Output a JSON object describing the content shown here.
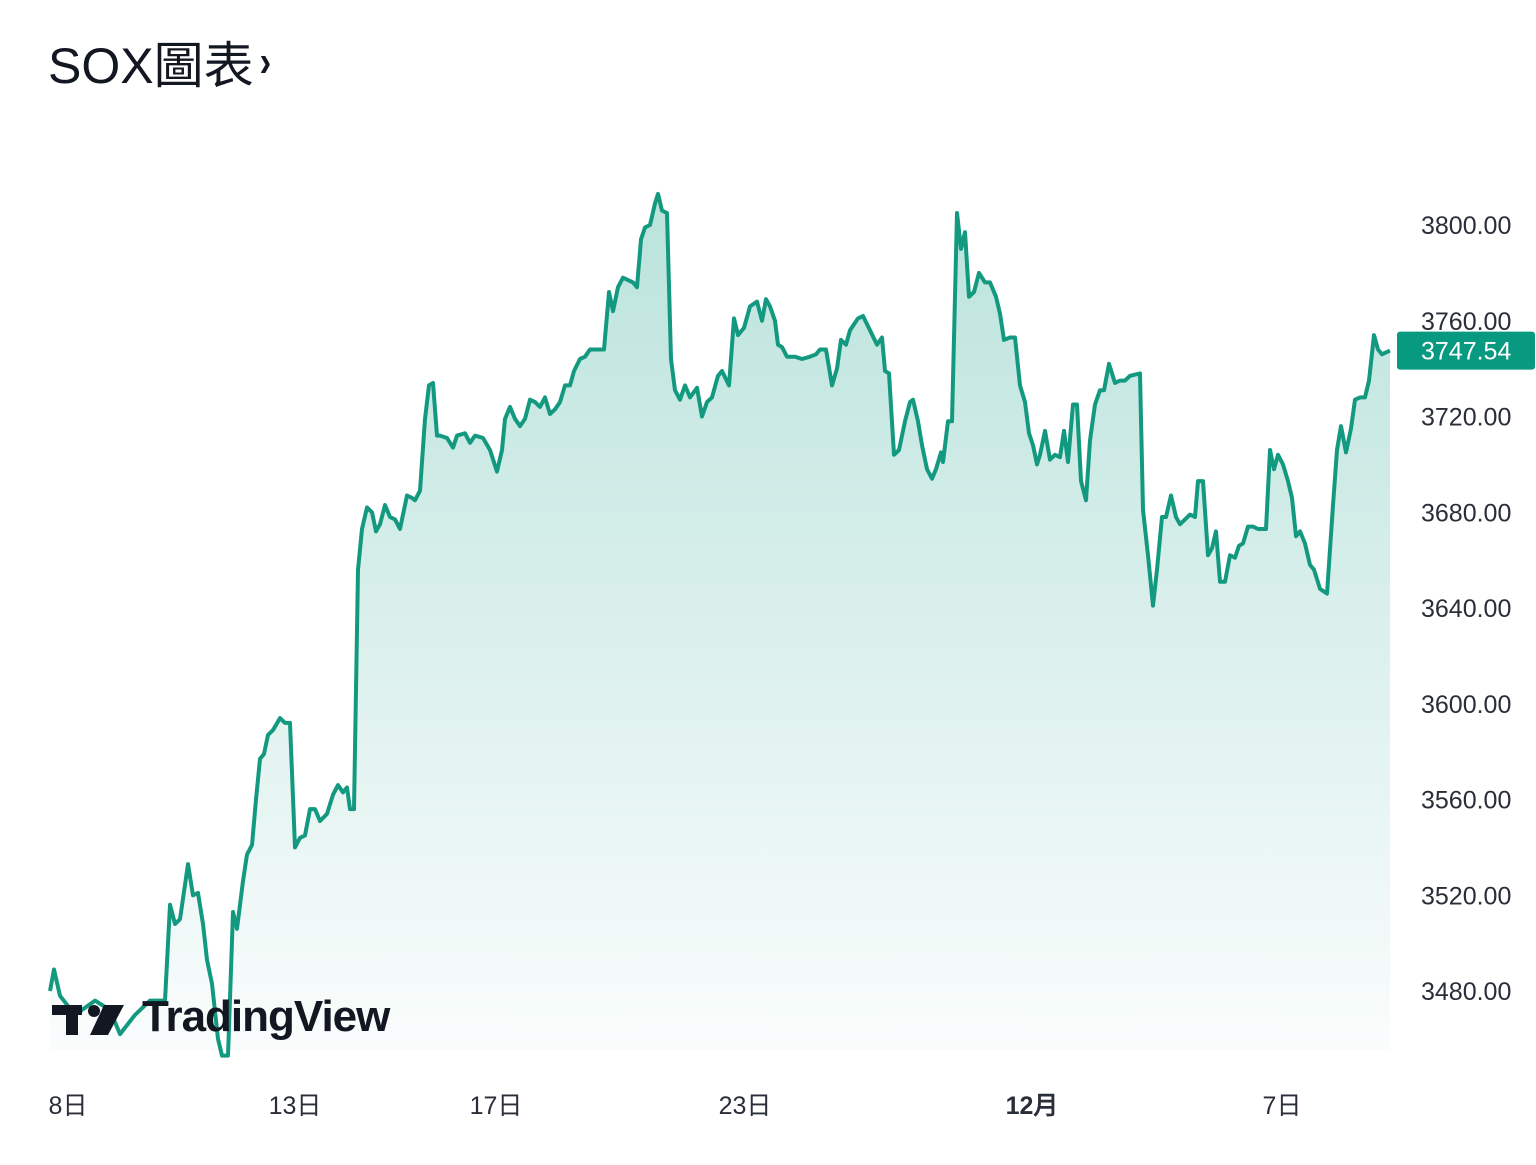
{
  "header": {
    "title": "SOX圖表",
    "chevron": "›"
  },
  "logo": {
    "text": "TradingView"
  },
  "colors": {
    "line": "#13997f",
    "label_bg": "#089981",
    "text": "#2a2e39"
  },
  "chart_data": {
    "type": "area",
    "title": "SOX圖表",
    "xlabel": "",
    "ylabel": "",
    "ylim": [
      3450,
      3830
    ],
    "xlim": [
      0,
      1340
    ],
    "grid": false,
    "yticks": [
      "3480.00",
      "3520.00",
      "3560.00",
      "3600.00",
      "3640.00",
      "3680.00",
      "3720.00",
      "3760.00",
      "3800.00"
    ],
    "xticks": [
      {
        "t": 18,
        "label": "8日",
        "bold": false
      },
      {
        "t": 245,
        "label": "13日",
        "bold": false
      },
      {
        "t": 446,
        "label": "17日",
        "bold": false
      },
      {
        "t": 695,
        "label": "23日",
        "bold": false
      },
      {
        "t": 982,
        "label": "12月",
        "bold": true
      },
      {
        "t": 1232,
        "label": "7日",
        "bold": false
      }
    ],
    "last_price": 3747.54,
    "last_price_label": "3747.54",
    "points": [
      [
        0,
        3480
      ],
      [
        4,
        3489
      ],
      [
        10,
        3478
      ],
      [
        25,
        3470
      ],
      [
        45,
        3476
      ],
      [
        60,
        3472
      ],
      [
        70,
        3462
      ],
      [
        85,
        3470
      ],
      [
        100,
        3476
      ],
      [
        115,
        3476
      ],
      [
        120,
        3516
      ],
      [
        125,
        3508
      ],
      [
        130,
        3510
      ],
      [
        138,
        3533
      ],
      [
        143,
        3520
      ],
      [
        148,
        3521
      ],
      [
        153,
        3508
      ],
      [
        157,
        3493
      ],
      [
        162,
        3483
      ],
      [
        168,
        3460
      ],
      [
        172,
        3453
      ],
      [
        178,
        3453
      ],
      [
        183,
        3513
      ],
      [
        187,
        3506
      ],
      [
        193,
        3526
      ],
      [
        197,
        3537
      ],
      [
        202,
        3541
      ],
      [
        206,
        3560
      ],
      [
        210,
        3577
      ],
      [
        214,
        3579
      ],
      [
        218,
        3587
      ],
      [
        223,
        3589
      ],
      [
        230,
        3594
      ],
      [
        235,
        3592
      ],
      [
        240,
        3592
      ],
      [
        245,
        3540
      ],
      [
        250,
        3544
      ],
      [
        255,
        3545
      ],
      [
        260,
        3556
      ],
      [
        265,
        3556
      ],
      [
        270,
        3551
      ],
      [
        277,
        3554
      ],
      [
        283,
        3562
      ],
      [
        288,
        3566
      ],
      [
        293,
        3563
      ],
      [
        297,
        3565
      ],
      [
        300,
        3556
      ],
      [
        304,
        3556
      ],
      [
        308,
        3656
      ],
      [
        312,
        3673
      ],
      [
        317,
        3682
      ],
      [
        322,
        3680
      ],
      [
        326,
        3672
      ],
      [
        330,
        3675
      ],
      [
        335,
        3683
      ],
      [
        340,
        3678
      ],
      [
        345,
        3677
      ],
      [
        350,
        3673
      ],
      [
        357,
        3687
      ],
      [
        362,
        3686
      ],
      [
        365,
        3685
      ],
      [
        370,
        3689
      ],
      [
        375,
        3719
      ],
      [
        379,
        3733
      ],
      [
        383,
        3734
      ],
      [
        387,
        3712
      ],
      [
        390,
        3712
      ],
      [
        397,
        3711
      ],
      [
        403,
        3707
      ],
      [
        407,
        3712
      ],
      [
        415,
        3713
      ],
      [
        420,
        3709
      ],
      [
        425,
        3712
      ],
      [
        433,
        3711
      ],
      [
        440,
        3706
      ],
      [
        447,
        3697
      ],
      [
        452,
        3706
      ],
      [
        455,
        3719
      ],
      [
        460,
        3724
      ],
      [
        465,
        3719
      ],
      [
        470,
        3716
      ],
      [
        475,
        3719
      ],
      [
        480,
        3727
      ],
      [
        485,
        3726
      ],
      [
        490,
        3724
      ],
      [
        495,
        3728
      ],
      [
        500,
        3721
      ],
      [
        505,
        3723
      ],
      [
        510,
        3726
      ],
      [
        515,
        3733
      ],
      [
        520,
        3733
      ],
      [
        524,
        3739
      ],
      [
        530,
        3744
      ],
      [
        535,
        3745
      ],
      [
        540,
        3748
      ],
      [
        548,
        3748
      ],
      [
        554,
        3748
      ],
      [
        559,
        3772
      ],
      [
        563,
        3764
      ],
      [
        568,
        3774
      ],
      [
        573,
        3778
      ],
      [
        578,
        3777
      ],
      [
        583,
        3776
      ],
      [
        587,
        3774
      ],
      [
        591,
        3794
      ],
      [
        595,
        3799
      ],
      [
        600,
        3800
      ],
      [
        605,
        3809
      ],
      [
        608,
        3813
      ],
      [
        612,
        3806
      ],
      [
        617,
        3805
      ],
      [
        621,
        3744
      ],
      [
        625,
        3731
      ],
      [
        630,
        3727
      ],
      [
        635,
        3733
      ],
      [
        640,
        3728
      ],
      [
        647,
        3732
      ],
      [
        652,
        3720
      ],
      [
        657,
        3726
      ],
      [
        662,
        3728
      ],
      [
        668,
        3737
      ],
      [
        672,
        3739
      ],
      [
        679,
        3733
      ],
      [
        684,
        3761
      ],
      [
        688,
        3754
      ],
      [
        694,
        3757
      ],
      [
        700,
        3766
      ],
      [
        707,
        3768
      ],
      [
        712,
        3760
      ],
      [
        716,
        3769
      ],
      [
        720,
        3766
      ],
      [
        725,
        3760
      ],
      [
        728,
        3750
      ],
      [
        732,
        3749
      ],
      [
        737,
        3745
      ],
      [
        745,
        3745
      ],
      [
        752,
        3744
      ],
      [
        760,
        3745
      ],
      [
        766,
        3746
      ],
      [
        770,
        3748
      ],
      [
        776,
        3748
      ],
      [
        782,
        3733
      ],
      [
        787,
        3740
      ],
      [
        791,
        3752
      ],
      [
        796,
        3750
      ],
      [
        800,
        3756
      ],
      [
        808,
        3761
      ],
      [
        813,
        3762
      ],
      [
        820,
        3756
      ],
      [
        827,
        3750
      ],
      [
        832,
        3753
      ],
      [
        835,
        3739
      ],
      [
        839,
        3738
      ],
      [
        844,
        3704
      ],
      [
        849,
        3706
      ],
      [
        855,
        3718
      ],
      [
        860,
        3726
      ],
      [
        863,
        3727
      ],
      [
        868,
        3718
      ],
      [
        872,
        3708
      ],
      [
        877,
        3698
      ],
      [
        882,
        3694
      ],
      [
        886,
        3698
      ],
      [
        891,
        3705
      ],
      [
        893,
        3701
      ],
      [
        898,
        3718
      ],
      [
        902,
        3718
      ],
      [
        907,
        3805
      ],
      [
        911,
        3790
      ],
      [
        915,
        3797
      ],
      [
        919,
        3770
      ],
      [
        924,
        3772
      ],
      [
        929,
        3780
      ],
      [
        935,
        3776
      ],
      [
        940,
        3776
      ],
      [
        946,
        3770
      ],
      [
        950,
        3763
      ],
      [
        954,
        3752
      ],
      [
        960,
        3753
      ],
      [
        965,
        3753
      ],
      [
        970,
        3733
      ],
      [
        975,
        3726
      ],
      [
        979,
        3713
      ],
      [
        983,
        3708
      ],
      [
        987,
        3700
      ],
      [
        990,
        3704
      ],
      [
        995,
        3714
      ],
      [
        1000,
        3702
      ],
      [
        1005,
        3704
      ],
      [
        1010,
        3703
      ],
      [
        1014,
        3714
      ],
      [
        1018,
        3701
      ],
      [
        1023,
        3725
      ],
      [
        1027,
        3725
      ],
      [
        1031,
        3693
      ],
      [
        1036,
        3685
      ],
      [
        1040,
        3710
      ],
      [
        1045,
        3725
      ],
      [
        1050,
        3731
      ],
      [
        1054,
        3731
      ],
      [
        1059,
        3742
      ],
      [
        1065,
        3734
      ],
      [
        1070,
        3735
      ],
      [
        1075,
        3735
      ],
      [
        1080,
        3737
      ],
      [
        1090,
        3738
      ],
      [
        1093,
        3681
      ],
      [
        1098,
        3662
      ],
      [
        1103,
        3641
      ],
      [
        1107,
        3656
      ],
      [
        1112,
        3678
      ],
      [
        1116,
        3678
      ],
      [
        1121,
        3687
      ],
      [
        1126,
        3678
      ],
      [
        1130,
        3675
      ],
      [
        1135,
        3677
      ],
      [
        1140,
        3679
      ],
      [
        1145,
        3678
      ],
      [
        1148,
        3693
      ],
      [
        1153,
        3693
      ],
      [
        1158,
        3662
      ],
      [
        1162,
        3665
      ],
      [
        1166,
        3672
      ],
      [
        1170,
        3651
      ],
      [
        1175,
        3651
      ],
      [
        1180,
        3662
      ],
      [
        1185,
        3661
      ],
      [
        1189,
        3666
      ],
      [
        1193,
        3667
      ],
      [
        1198,
        3674
      ],
      [
        1203,
        3674
      ],
      [
        1208,
        3673
      ],
      [
        1216,
        3673
      ],
      [
        1220,
        3706
      ],
      [
        1224,
        3698
      ],
      [
        1228,
        3704
      ],
      [
        1233,
        3700
      ],
      [
        1238,
        3693
      ],
      [
        1242,
        3686
      ],
      [
        1246,
        3670
      ],
      [
        1250,
        3672
      ],
      [
        1255,
        3667
      ],
      [
        1260,
        3658
      ],
      [
        1264,
        3656
      ],
      [
        1270,
        3648
      ],
      [
        1277,
        3646
      ],
      [
        1283,
        3683
      ],
      [
        1287,
        3706
      ],
      [
        1291,
        3716
      ],
      [
        1296,
        3705
      ],
      [
        1301,
        3715
      ],
      [
        1305,
        3727
      ],
      [
        1310,
        3728
      ],
      [
        1315,
        3728
      ],
      [
        1319,
        3735
      ],
      [
        1324,
        3754
      ],
      [
        1328,
        3748
      ],
      [
        1332,
        3746
      ],
      [
        1337,
        3747
      ],
      [
        1340,
        3747.54
      ]
    ]
  }
}
